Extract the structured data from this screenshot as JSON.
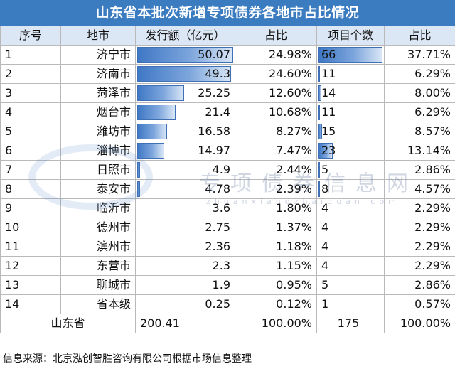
{
  "title": "山东省本批次新增专项债券各地市占比情况",
  "headers": [
    "序号",
    "地市",
    "发行额（亿元）",
    "占比",
    "项目个数",
    "占比"
  ],
  "rows": [
    {
      "idx": "1",
      "city": "济宁市",
      "amount": "50.07",
      "amount_pct": "24.98%",
      "count": "66",
      "count_pct": "37.71%",
      "amount_bar": 1.0,
      "count_bar": 1.0
    },
    {
      "idx": "2",
      "city": "济南市",
      "amount": "49.3",
      "amount_pct": "24.60%",
      "count": "11",
      "count_pct": "6.29%",
      "amount_bar": 0.98,
      "count_bar": 0.06
    },
    {
      "idx": "3",
      "city": "菏泽市",
      "amount": "25.25",
      "amount_pct": "12.60%",
      "count": "14",
      "count_pct": "8.00%",
      "amount_bar": 0.5,
      "count_bar": 0.09
    },
    {
      "idx": "4",
      "city": "烟台市",
      "amount": "21.4",
      "amount_pct": "10.68%",
      "count": "11",
      "count_pct": "6.29%",
      "amount_bar": 0.42,
      "count_bar": 0.06
    },
    {
      "idx": "5",
      "city": "潍坊市",
      "amount": "16.58",
      "amount_pct": "8.27%",
      "count": "15",
      "count_pct": "8.57%",
      "amount_bar": 0.33,
      "count_bar": 0.1
    },
    {
      "idx": "6",
      "city": "淄博市",
      "amount": "14.97",
      "amount_pct": "7.47%",
      "count": "23",
      "count_pct": "13.14%",
      "amount_bar": 0.3,
      "count_bar": 0.26
    },
    {
      "idx": "7",
      "city": "日照市",
      "amount": "4.9",
      "amount_pct": "2.44%",
      "count": "5",
      "count_pct": "2.86%",
      "amount_bar": 0.06,
      "count_bar": 0.03
    },
    {
      "idx": "8",
      "city": "泰安市",
      "amount": "4.78",
      "amount_pct": "2.39%",
      "count": "8",
      "count_pct": "4.57%",
      "amount_bar": 0.06,
      "count_bar": 0.03
    },
    {
      "idx": "9",
      "city": "临沂市",
      "amount": "3.6",
      "amount_pct": "1.80%",
      "count": "4",
      "count_pct": "2.29%",
      "amount_bar": 0,
      "count_bar": 0
    },
    {
      "idx": "10",
      "city": "德州市",
      "amount": "2.75",
      "amount_pct": "1.37%",
      "count": "4",
      "count_pct": "2.29%",
      "amount_bar": 0,
      "count_bar": 0
    },
    {
      "idx": "11",
      "city": "滨州市",
      "amount": "2.36",
      "amount_pct": "1.18%",
      "count": "4",
      "count_pct": "2.29%",
      "amount_bar": 0,
      "count_bar": 0
    },
    {
      "idx": "12",
      "city": "东营市",
      "amount": "2.3",
      "amount_pct": "1.15%",
      "count": "4",
      "count_pct": "2.29%",
      "amount_bar": 0,
      "count_bar": 0
    },
    {
      "idx": "13",
      "city": "聊城市",
      "amount": "1.9",
      "amount_pct": "0.95%",
      "count": "5",
      "count_pct": "2.86%",
      "amount_bar": 0,
      "count_bar": 0
    },
    {
      "idx": "14",
      "city": "省本级",
      "amount": "0.25",
      "amount_pct": "0.12%",
      "count": "1",
      "count_pct": "0.57%",
      "amount_bar": 0,
      "count_bar": 0
    }
  ],
  "total": {
    "label": "山东省",
    "amount": "200.41",
    "amount_pct": "100.00%",
    "count": "175",
    "count_pct": "100.00%"
  },
  "footer": "信息来源：北京泓创智胜咨询有限公司根据市场信息整理",
  "watermark": {
    "text": "专项债券信息网",
    "pinyin": "zhuanxiangzhaiquan.com"
  },
  "colors": {
    "header_bar": "#3b7bc0",
    "column_header_bg": "#dbe7f5",
    "data_bar": "#3f78c5"
  }
}
